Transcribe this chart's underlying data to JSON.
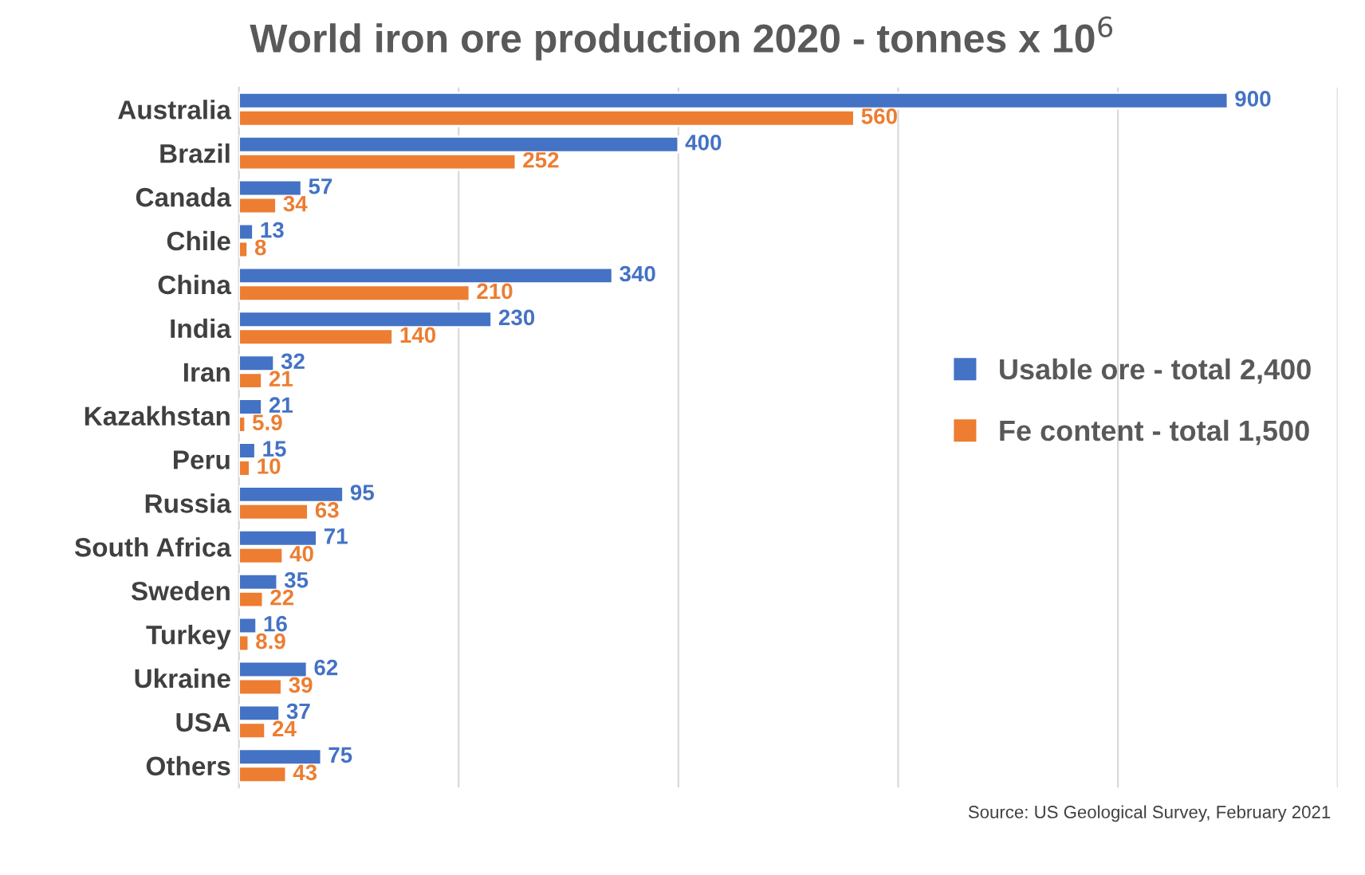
{
  "chart_data": {
    "type": "bar",
    "orientation": "horizontal",
    "title": "World iron ore production 2020 - tonnes x 10$^{6}$",
    "categories": [
      "Australia",
      "Brazil",
      "Canada",
      "Chile",
      "China",
      "India",
      "Iran",
      "Kazakhstan",
      "Peru",
      "Russia",
      "South Africa",
      "Sweden",
      "Turkey",
      "Ukraine",
      "USA",
      "Others"
    ],
    "series": [
      {
        "name": "Usable ore - total 2,400",
        "color": "#4472c4",
        "values": [
          900,
          400,
          57,
          13,
          340,
          230,
          32,
          21,
          15,
          95,
          71,
          35,
          16,
          62,
          37,
          75
        ]
      },
      {
        "name": "Fe content - total 1,500",
        "color": "#ed7d31",
        "values": [
          560,
          252,
          34,
          8,
          210,
          140,
          21,
          5.9,
          10,
          63,
          40,
          22,
          8.9,
          39,
          24,
          43
        ]
      }
    ],
    "xlim": [
      0,
      1000
    ],
    "xticks": [
      {
        "value": 0,
        "label": null
      },
      {
        "value": 200,
        "label": null
      },
      {
        "value": 400,
        "label": null
      },
      {
        "value": 600,
        "label": null
      },
      {
        "value": 800,
        "label": null
      },
      {
        "value": 1000,
        "label": null
      }
    ],
    "grid": "x",
    "legend": "right",
    "data_labels": true,
    "tick_labels": "y",
    "annotations": [
      "Source: US Geological Survey, February 2021"
    ]
  }
}
